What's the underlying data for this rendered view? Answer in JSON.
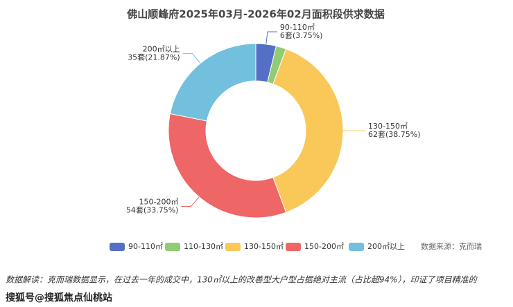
{
  "chart_data": {
    "type": "donut",
    "title": "佛山顺峰府2025年03月-2026年02月面积段供求数据",
    "categories": [
      "90-110㎡",
      "110-130㎡",
      "130-150㎡",
      "150-200㎡",
      "200㎡以上"
    ],
    "values": [
      6,
      3,
      62,
      54,
      35
    ],
    "value_labels": [
      "6套(3.75%)",
      null,
      "62套(38.75%)",
      "54套(33.75%)",
      "35套(21.87%)"
    ],
    "colors": [
      "#5470c6",
      "#91cc75",
      "#fac858",
      "#ee6666",
      "#73c0de"
    ],
    "source": "数据来源：克而瑞"
  },
  "footer": {
    "note": "数据解读：克而瑞数据显示，在过去一年的成交中，130㎡以上的改善型大户型占据绝对主流（占比超94%），印证了项目精准的",
    "watermark": "搜狐号@搜狐焦点仙桃站"
  }
}
